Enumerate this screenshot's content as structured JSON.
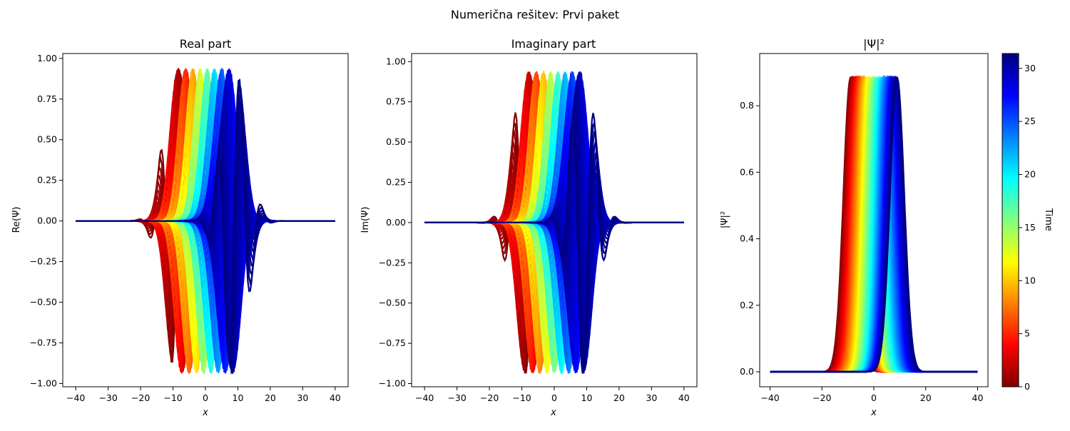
{
  "figure": {
    "suptitle": "Numerična rešitev: Prvi paket"
  },
  "colors": {
    "colormap": [
      "#800000",
      "#ff0000",
      "#ff8000",
      "#ffff00",
      "#80ff80",
      "#00ffff",
      "#0080ff",
      "#0000ff",
      "#000080"
    ]
  },
  "chart_data": [
    {
      "type": "line",
      "title": "Real part",
      "xlabel": "x",
      "ylabel": "Re(Ψ)",
      "xlim": [
        -44,
        44
      ],
      "ylim": [
        -1.02,
        1.03
      ],
      "xticks": [
        -40,
        -30,
        -20,
        -10,
        0,
        10,
        20,
        30,
        40
      ],
      "yticks": [
        -1.0,
        -0.75,
        -0.5,
        -0.25,
        0.0,
        0.25,
        0.5,
        0.75,
        1.0
      ],
      "ytick_labels": [
        "−1.00",
        "−0.75",
        "−0.50",
        "−0.25",
        "0.00",
        "0.25",
        "0.50",
        "0.75",
        "1.00"
      ],
      "xtick_labels": [
        "−40",
        "−30",
        "−20",
        "−10",
        "0",
        "10",
        "20",
        "30",
        "40"
      ],
      "x_range": [
        -40,
        40
      ],
      "time_range": [
        0,
        31.4
      ],
      "component": "real"
    },
    {
      "type": "line",
      "title": "Imaginary part",
      "xlabel": "x",
      "ylabel": "Im(Ψ)",
      "xlim": [
        -44,
        44
      ],
      "ylim": [
        -1.02,
        1.05
      ],
      "xticks": [
        -40,
        -30,
        -20,
        -10,
        0,
        10,
        20,
        30,
        40
      ],
      "yticks": [
        -1.0,
        -0.75,
        -0.5,
        -0.25,
        0.0,
        0.25,
        0.5,
        0.75,
        1.0
      ],
      "ytick_labels": [
        "−1.00",
        "−0.75",
        "−0.50",
        "−0.25",
        "0.00",
        "0.25",
        "0.50",
        "0.75",
        "1.00"
      ],
      "xtick_labels": [
        "−40",
        "−30",
        "−20",
        "−10",
        "0",
        "10",
        "20",
        "30",
        "40"
      ],
      "x_range": [
        -40,
        40
      ],
      "time_range": [
        0,
        31.4
      ],
      "component": "imag"
    },
    {
      "type": "line",
      "title": "|Ψ|²",
      "xlabel": "x",
      "ylabel": "|Ψ|²",
      "xlim": [
        -44,
        44
      ],
      "ylim": [
        -0.045,
        0.957
      ],
      "xticks": [
        -40,
        -20,
        0,
        20,
        40
      ],
      "yticks": [
        0.0,
        0.2,
        0.4,
        0.6,
        0.8
      ],
      "ytick_labels": [
        "0.0",
        "0.2",
        "0.4",
        "0.6",
        "0.8"
      ],
      "xtick_labels": [
        "−40",
        "−20",
        "0",
        "20",
        "40"
      ],
      "x_range": [
        -40,
        40
      ],
      "time_range": [
        0,
        31.4
      ],
      "component": "density"
    }
  ],
  "colorbar": {
    "label": "Time",
    "range": [
      0,
      31.4
    ],
    "ticks": [
      0,
      5,
      10,
      15,
      20,
      25,
      30
    ],
    "tick_labels": [
      "0",
      "5",
      "10",
      "15",
      "20",
      "25",
      "30"
    ]
  }
}
